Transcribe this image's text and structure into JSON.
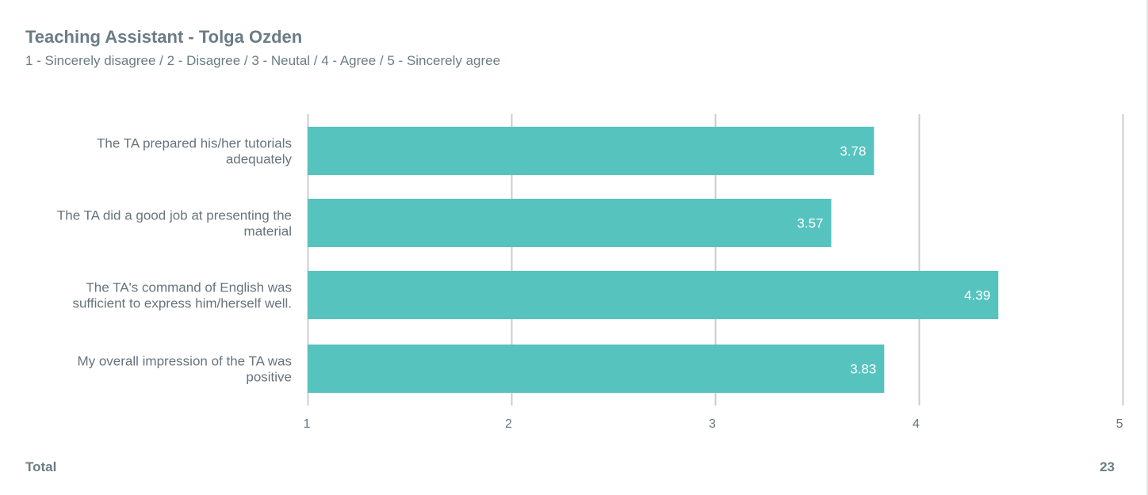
{
  "page": {
    "title": "Teaching Assistant - Tolga Ozden",
    "subtitle": "1 - Sincerely disagree / 2 - Disagree / 3 - Neutal / 4 - Agree / 5 - Sincerely agree"
  },
  "footer": {
    "label": "Total",
    "value": "23"
  },
  "chart_data": {
    "type": "bar",
    "orientation": "horizontal",
    "title": "Teaching Assistant - Tolga Ozden",
    "subtitle": "1 - Sincerely disagree / 2 - Disagree / 3 - Neutal / 4 - Agree / 5 - Sincerely agree",
    "categories": [
      [
        "The TA prepared his/her tutorials",
        "adequately"
      ],
      [
        "The TA did a good job at presenting the",
        "material"
      ],
      [
        "The TA's command of English was",
        "sufficient to express him/herself well."
      ],
      [
        "My overall impression of the TA was",
        "positive"
      ]
    ],
    "values": [
      3.78,
      3.57,
      4.39,
      3.83
    ],
    "value_labels": [
      "3.78",
      "3.57",
      "4.39",
      "3.83"
    ],
    "xlim": [
      1,
      5
    ],
    "x_ticks": [
      1,
      2,
      3,
      4,
      5
    ],
    "grid": true,
    "legend": "none",
    "bar_color": "#56c3bf",
    "grid_color": "#cccccc",
    "label_color": "#68747d"
  }
}
